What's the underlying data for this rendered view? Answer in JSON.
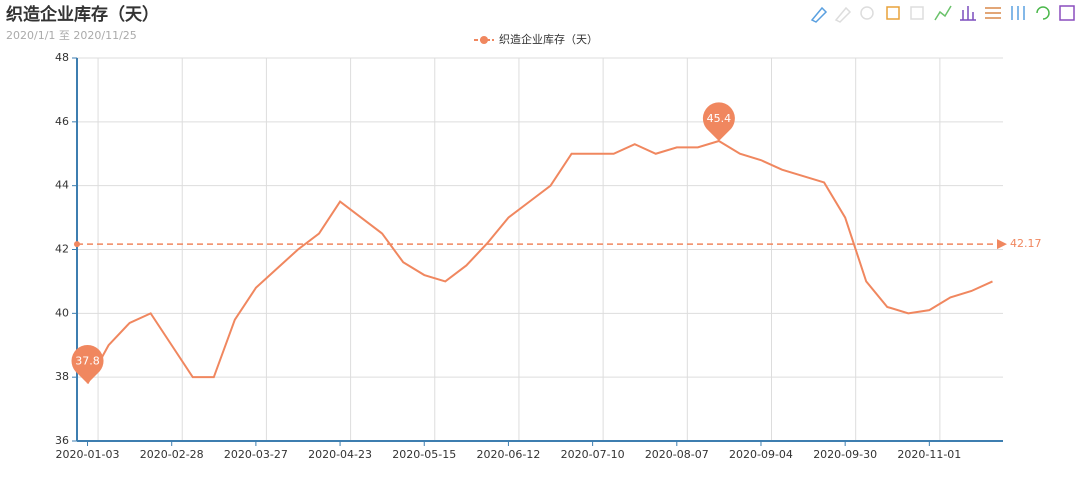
{
  "chart_data": {
    "type": "line",
    "title": "织造企业库存（天）",
    "subtitle": "2020/1/1 至 2020/11/25",
    "categories": [
      "2020-01-03",
      null,
      null,
      null,
      "2020-02-28",
      null,
      null,
      null,
      "2020-03-27",
      null,
      null,
      null,
      "2020-04-23",
      null,
      null,
      null,
      "2020-05-15",
      null,
      null,
      null,
      "2020-06-12",
      null,
      null,
      null,
      "2020-07-10",
      null,
      null,
      null,
      "2020-08-07",
      null,
      null,
      null,
      "2020-09-04",
      null,
      null,
      null,
      "2020-09-30",
      null,
      null,
      null,
      "2020-11-01",
      null,
      null,
      null
    ],
    "series": [
      {
        "name": "织造企业库存（天）",
        "color": "#f0875f",
        "values": [
          37.8,
          39,
          39.7,
          40,
          39,
          38,
          38,
          39.8,
          40.8,
          41.4,
          42,
          42.5,
          43.5,
          43,
          42.5,
          41.6,
          41.2,
          41,
          41.5,
          42.2,
          43,
          43.5,
          44,
          45,
          45,
          45,
          45.3,
          45,
          45.2,
          45.2,
          45.4,
          45,
          44.8,
          44.5,
          44.3,
          44.1,
          43,
          41,
          40.2,
          40,
          40.1,
          40.5,
          40.7,
          41
        ]
      }
    ],
    "mark_line": {
      "value": 42.17
    },
    "ylim": [
      36,
      48
    ],
    "yticks": [
      36,
      38,
      40,
      42,
      44,
      46,
      48
    ],
    "grid": true
  }
}
